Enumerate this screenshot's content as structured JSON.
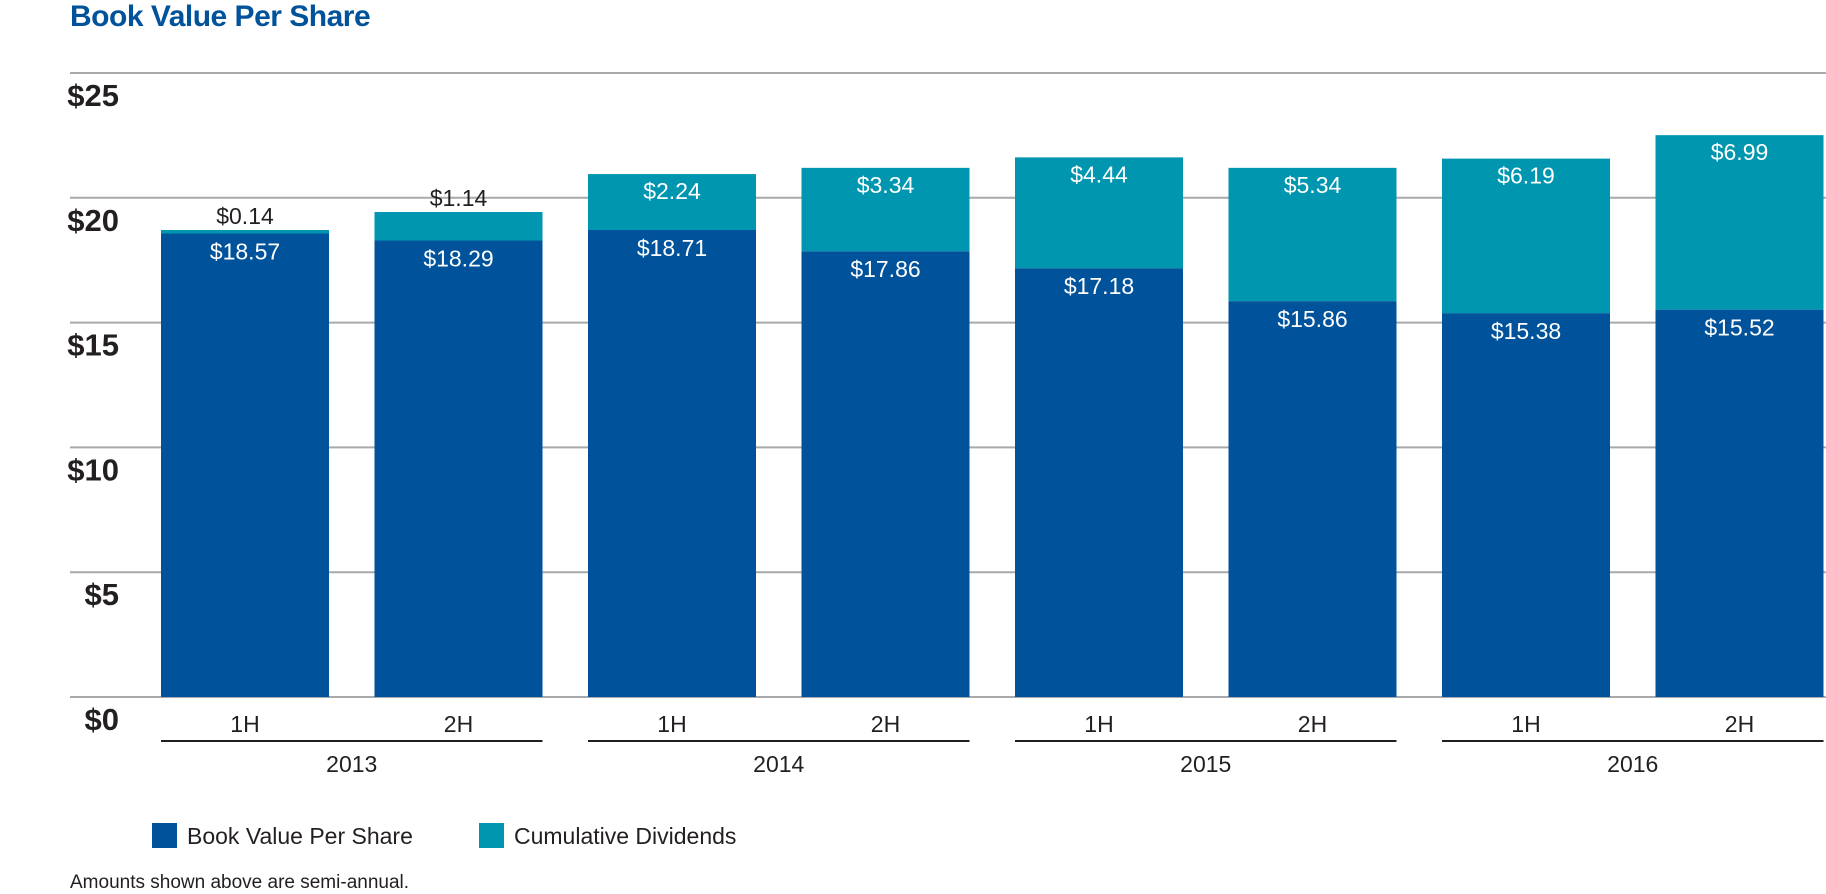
{
  "chart_data": {
    "type": "bar",
    "stacked": true,
    "title": "Book Value Per Share",
    "footnote": "Amounts shown above are semi-annual.",
    "categories": [
      "1H",
      "2H",
      "1H",
      "2H",
      "1H",
      "2H",
      "1H",
      "2H"
    ],
    "groups": [
      {
        "label": "2013",
        "span": 2
      },
      {
        "label": "2014",
        "span": 2
      },
      {
        "label": "2015",
        "span": 2
      },
      {
        "label": "2016",
        "span": 2
      }
    ],
    "series": [
      {
        "name": "Book Value Per Share",
        "color": "#00539b",
        "values": [
          18.57,
          18.29,
          18.71,
          17.86,
          17.18,
          15.86,
          15.38,
          15.52
        ],
        "labels": [
          "$18.57",
          "$18.29",
          "$18.71",
          "$17.86",
          "$17.18",
          "$15.86",
          "$15.38",
          "$15.52"
        ]
      },
      {
        "name": "Cumulative Dividends",
        "color": "#0096b0",
        "values": [
          0.14,
          1.14,
          2.24,
          3.34,
          4.44,
          5.34,
          6.19,
          6.99
        ],
        "labels": [
          "$0.14",
          "$1.14",
          "$2.24",
          "$3.34",
          "$4.44",
          "$5.34",
          "$6.19",
          "$6.99"
        ]
      }
    ],
    "yticks": [
      0,
      5,
      10,
      15,
      20,
      25
    ],
    "ytick_labels": [
      "$0",
      "$5",
      "$10",
      "$15",
      "$20",
      "$25"
    ],
    "ylim": [
      0,
      25
    ],
    "grid": true,
    "legend_position": "bottom-left"
  }
}
